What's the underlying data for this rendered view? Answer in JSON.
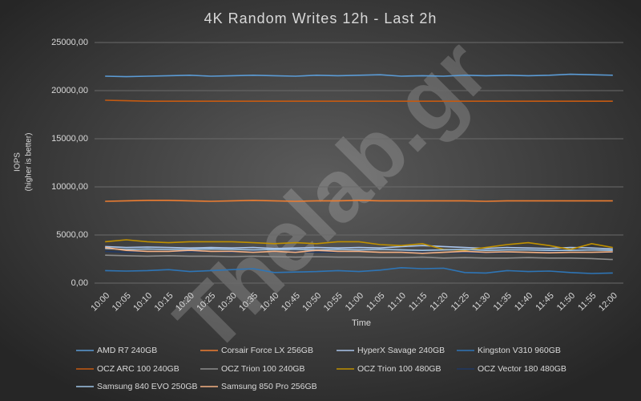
{
  "chart_data": {
    "type": "line",
    "title": "4K Random Writes 12h - Last 2h",
    "y_label": [
      "IOPS",
      "(higher is better)"
    ],
    "x_label": "Time",
    "watermark": "Thelab.gr",
    "categories": [
      "10:00",
      "10:05",
      "10:10",
      "10:15",
      "10:20",
      "10:25",
      "10:30",
      "10:35",
      "10:40",
      "10:45",
      "10:50",
      "10:55",
      "11:00",
      "11:05",
      "11:10",
      "11:15",
      "11:20",
      "11:25",
      "11:30",
      "11:35",
      "11:40",
      "11:45",
      "11:50",
      "11:55",
      "12:00"
    ],
    "ylim": [
      0,
      25000
    ],
    "yticks": [
      {
        "value": 0,
        "label": "0,00"
      },
      {
        "value": 5000,
        "label": "5000,00"
      },
      {
        "value": 10000,
        "label": "10000,00"
      },
      {
        "value": 15000,
        "label": "15000,00"
      },
      {
        "value": 20000,
        "label": "20000,00"
      },
      {
        "value": 25000,
        "label": "25000,00"
      }
    ],
    "grid": true,
    "series": [
      {
        "name": "AMD R7 240GB",
        "color": "#5b9bd5",
        "values": [
          21500,
          21450,
          21500,
          21550,
          21600,
          21500,
          21550,
          21600,
          21550,
          21500,
          21600,
          21550,
          21600,
          21650,
          21500,
          21550,
          21500,
          21600,
          21550,
          21600,
          21550,
          21600,
          21700,
          21650,
          21600
        ]
      },
      {
        "name": "Corsair Force LX 256GB",
        "color": "#ed7d31",
        "values": [
          8500,
          8550,
          8600,
          8600,
          8550,
          8500,
          8550,
          8600,
          8550,
          8500,
          8550,
          8550,
          8600,
          8550,
          8550,
          8550,
          8550,
          8550,
          8500,
          8550,
          8550,
          8550,
          8550,
          8550,
          8550
        ]
      },
      {
        "name": "HyperX Savage 240GB",
        "color": "#a9c4eb",
        "values": [
          3800,
          3700,
          3750,
          3700,
          3650,
          3700,
          3650,
          3700,
          3600,
          3650,
          3700,
          3650,
          3700,
          3650,
          3800,
          3900,
          3800,
          3700,
          3600,
          3700,
          3650,
          3600,
          3700,
          3650,
          3550
        ]
      },
      {
        "name": "Kingston V310 960GB",
        "color": "#2e75b6",
        "values": [
          1300,
          1250,
          1300,
          1400,
          1200,
          1300,
          1400,
          1500,
          1100,
          1150,
          1200,
          1300,
          1200,
          1350,
          1600,
          1500,
          1550,
          1100,
          1050,
          1300,
          1200,
          1250,
          1100,
          1000,
          1050
        ]
      },
      {
        "name": "OCZ ARC 100 240GB",
        "color": "#c55a11",
        "values": [
          19000,
          18950,
          18900,
          18900,
          18900,
          18900,
          18900,
          18900,
          18900,
          18900,
          18900,
          18900,
          18900,
          18900,
          18900,
          18900,
          18900,
          18900,
          18900,
          18900,
          18900,
          18900,
          18900,
          18900,
          18900
        ]
      },
      {
        "name": "OCZ Trion 100 240GB",
        "color": "#8c8c8c",
        "values": [
          2900,
          2850,
          2800,
          2850,
          2800,
          2800,
          2750,
          2800,
          2750,
          2700,
          2750,
          2700,
          2700,
          2650,
          2650,
          2700,
          2600,
          2650,
          2600,
          2600,
          2650,
          2600,
          2600,
          2550,
          2450
        ]
      },
      {
        "name": "OCZ Trion 100 480GB",
        "color": "#bf9000",
        "values": [
          4300,
          4500,
          4300,
          4200,
          4300,
          4300,
          4300,
          4200,
          4100,
          4200,
          4100,
          4300,
          4300,
          4000,
          3900,
          4100,
          3500,
          3400,
          3700,
          4000,
          4200,
          3900,
          3500,
          4100,
          3700
        ]
      },
      {
        "name": "OCZ Vector 180 480GB",
        "color": "#203864",
        "values": [
          3300,
          3200,
          3300,
          3300,
          3250,
          3300,
          3200,
          3300,
          3250,
          3300,
          3200,
          3250,
          3300,
          3200,
          3250,
          3200,
          3200,
          3150,
          3150,
          3200,
          3200,
          3250,
          3200,
          3200,
          3200
        ]
      },
      {
        "name": "Samsung 840 EVO 250GB",
        "color": "#9dc3e6",
        "values": [
          3600,
          3500,
          3550,
          3500,
          3500,
          3550,
          3500,
          3450,
          3500,
          3500,
          3450,
          3500,
          3450,
          3500,
          3450,
          3400,
          3450,
          3500,
          3400,
          3450,
          3450,
          3400,
          3400,
          3450,
          3400
        ]
      },
      {
        "name": "Samsung 850 Pro 256GB",
        "color": "#f4b183",
        "values": [
          3700,
          3400,
          3300,
          3300,
          3400,
          3300,
          3300,
          3200,
          3300,
          3200,
          3400,
          3300,
          3300,
          3200,
          3200,
          3100,
          3200,
          3300,
          3200,
          3250,
          3200,
          3150,
          3200,
          3200,
          3250
        ]
      }
    ]
  }
}
